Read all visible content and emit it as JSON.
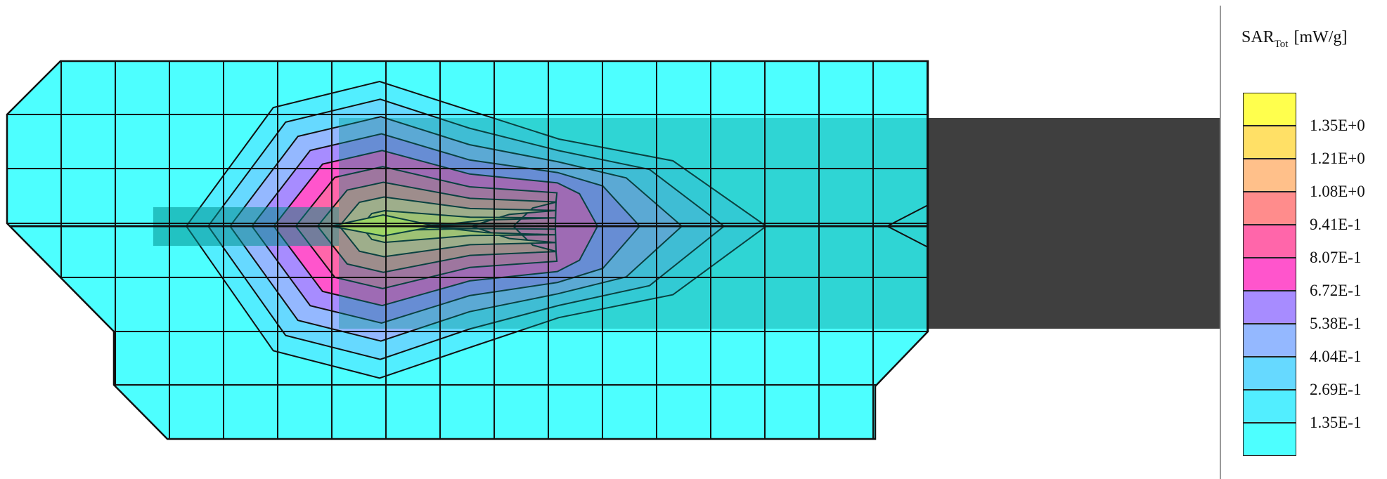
{
  "chart_data": {
    "type": "heatmap",
    "title": "",
    "colorbar": {
      "quantity": "SAR",
      "quantity_subscript": "Tot",
      "unit": "[mW/g]",
      "tick_labels": [
        "1.35E+0",
        "1.21E+0",
        "1.08E+0",
        "9.41E-1",
        "8.07E-1",
        "6.72E-1",
        "5.38E-1",
        "4.04E-1",
        "2.69E-1",
        "1.35E-1"
      ],
      "level_values": [
        1.35,
        1.21,
        1.08,
        0.941,
        0.807,
        0.672,
        0.538,
        0.404,
        0.269,
        0.135
      ],
      "colors_top_to_bottom": [
        "#ffff4d",
        "#ffe066",
        "#ffc08a",
        "#ff8c8c",
        "#ff66aa",
        "#ff55cc",
        "#a78cff",
        "#94b8ff",
        "#66d9ff",
        "#52eeff",
        "#4dffff"
      ]
    },
    "max_location_description": "peak near feed point on left side of device",
    "colors": {
      "base_region": "#4dffff",
      "overlay_device": "#1fb8b8",
      "ground_plane": "#3f3f3f",
      "mesh_lines": "#111111"
    }
  }
}
